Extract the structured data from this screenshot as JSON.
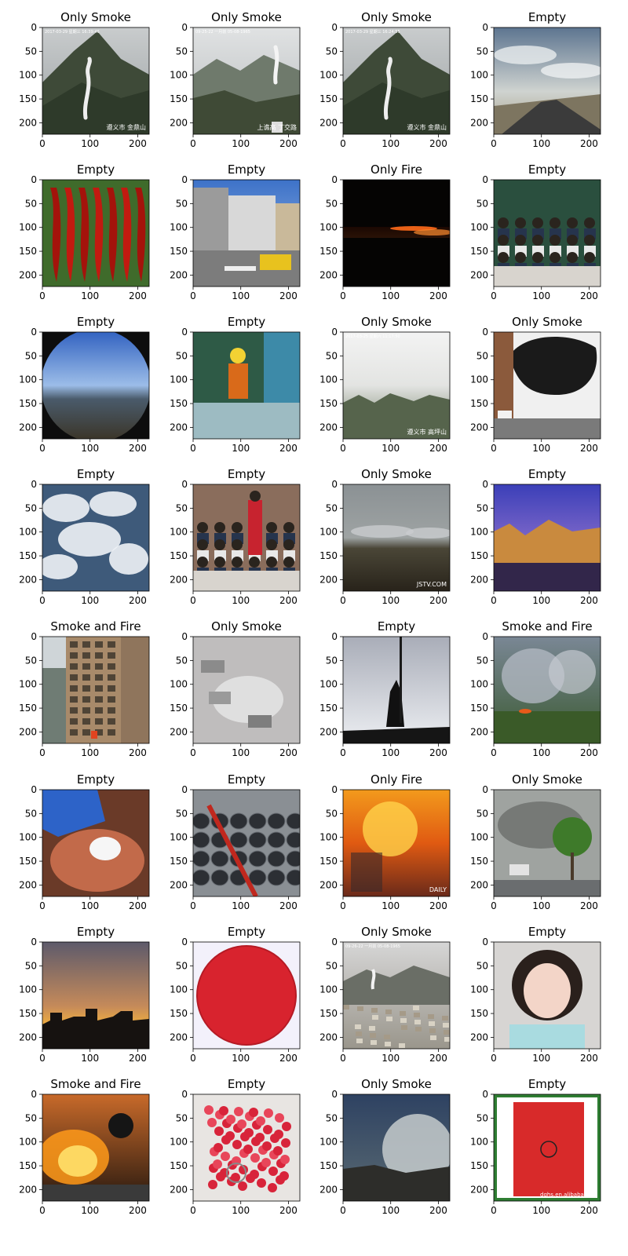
{
  "chart_data": {
    "type": "image-grid",
    "rows": 8,
    "cols": 4,
    "xlim": [
      0,
      224
    ],
    "ylim": [
      224,
      0
    ],
    "xticks": [
      0,
      100,
      200
    ],
    "yticks": [
      0,
      50,
      100,
      150,
      200
    ],
    "panels": [
      {
        "title": "Only Smoke",
        "scene": "mountain-smoke",
        "overlay": "2017-03-29 星期三 16:39:46",
        "corner": "遵义市 金鼎山"
      },
      {
        "title": "Only Smoke",
        "scene": "mountain-smoke-2",
        "overlay": "09-25-22 一月前 05-08-1965",
        "corner": "上谯高 丁交路"
      },
      {
        "title": "Only Smoke",
        "scene": "mountain-smoke-3",
        "overlay": "2017-03-29 星期三 16:24:55",
        "corner": "遵义市 金鼎山"
      },
      {
        "title": "Empty",
        "scene": "road-sky"
      },
      {
        "title": "Empty",
        "scene": "chili-peppers"
      },
      {
        "title": "Empty",
        "scene": "street-taxi"
      },
      {
        "title": "Only Fire",
        "scene": "night-fire"
      },
      {
        "title": "Empty",
        "scene": "classroom"
      },
      {
        "title": "Empty",
        "scene": "fisheye-landscape"
      },
      {
        "title": "Empty",
        "scene": "worker"
      },
      {
        "title": "Only Smoke",
        "scene": "fog-forest",
        "overlay": "2017-03-25 星期六 11:17:50",
        "corner": "遵义市 高坪山"
      },
      {
        "title": "Only Smoke",
        "scene": "black-smoke-building"
      },
      {
        "title": "Empty",
        "scene": "clouds-aerial"
      },
      {
        "title": "Empty",
        "scene": "classroom-2"
      },
      {
        "title": "Only Smoke",
        "scene": "field-smoke",
        "corner": "JSTV.COM"
      },
      {
        "title": "Empty",
        "scene": "canyon"
      },
      {
        "title": "Smoke and Fire",
        "scene": "tall-building"
      },
      {
        "title": "Only Smoke",
        "scene": "cars-smoke"
      },
      {
        "title": "Empty",
        "scene": "silhouette"
      },
      {
        "title": "Smoke and Fire",
        "scene": "forest-fire-smoke"
      },
      {
        "title": "Empty",
        "scene": "sugar-bowl"
      },
      {
        "title": "Empty",
        "scene": "steel-coils"
      },
      {
        "title": "Only Fire",
        "scene": "big-fire",
        "corner": "DAILY"
      },
      {
        "title": "Only Smoke",
        "scene": "street-smoke-tree"
      },
      {
        "title": "Empty",
        "scene": "sunset-city"
      },
      {
        "title": "Empty",
        "scene": "red-disc"
      },
      {
        "title": "Only Smoke",
        "scene": "city-smoke",
        "overlay": "09-26-22 一月前 05-08-1965"
      },
      {
        "title": "Empty",
        "scene": "portrait"
      },
      {
        "title": "Smoke and Fire",
        "scene": "grass-fire"
      },
      {
        "title": "Empty",
        "scene": "raspberries"
      },
      {
        "title": "Only Smoke",
        "scene": "mist-valley"
      },
      {
        "title": "Empty",
        "scene": "red-bag",
        "corner": "dghs.en.alibaba.com"
      }
    ]
  }
}
